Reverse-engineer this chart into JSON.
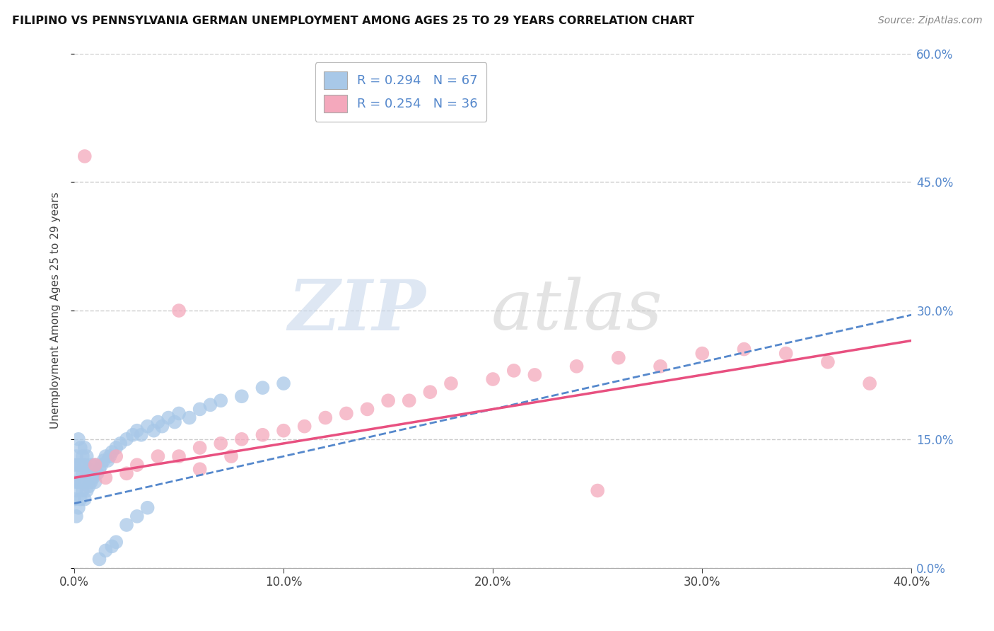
{
  "title": "FILIPINO VS PENNSYLVANIA GERMAN UNEMPLOYMENT AMONG AGES 25 TO 29 YEARS CORRELATION CHART",
  "source": "Source: ZipAtlas.com",
  "ylabel": "Unemployment Among Ages 25 to 29 years",
  "legend_entry1_r": "0.294",
  "legend_entry1_n": "67",
  "legend_entry2_r": "0.254",
  "legend_entry2_n": "36",
  "filipino_color": "#a8c8e8",
  "pa_german_color": "#f4a8bc",
  "filipino_line_color": "#5588cc",
  "pa_german_line_color": "#e85080",
  "watermark_zip": "ZIP",
  "watermark_atlas": "atlas",
  "r_filipino": 0.294,
  "n_filipino": 67,
  "r_pa_german": 0.254,
  "n_pa_german": 36,
  "xlim": [
    0.0,
    0.4
  ],
  "ylim": [
    0.0,
    0.6
  ],
  "yticks": [
    0.0,
    0.15,
    0.3,
    0.45,
    0.6
  ],
  "xticks": [
    0.0,
    0.1,
    0.2,
    0.3,
    0.4
  ],
  "grid_color": "#cccccc",
  "background_color": "#ffffff",
  "filipino_line_start_y": 0.075,
  "filipino_line_end_y": 0.295,
  "pa_german_line_start_y": 0.105,
  "pa_german_line_end_y": 0.265,
  "filipino_scatter_x": [
    0.0,
    0.0,
    0.0,
    0.001,
    0.001,
    0.001,
    0.001,
    0.002,
    0.002,
    0.002,
    0.002,
    0.003,
    0.003,
    0.003,
    0.003,
    0.004,
    0.004,
    0.004,
    0.005,
    0.005,
    0.005,
    0.005,
    0.006,
    0.006,
    0.006,
    0.007,
    0.007,
    0.008,
    0.008,
    0.009,
    0.01,
    0.01,
    0.011,
    0.012,
    0.013,
    0.014,
    0.015,
    0.016,
    0.017,
    0.018,
    0.02,
    0.022,
    0.025,
    0.028,
    0.03,
    0.032,
    0.035,
    0.038,
    0.04,
    0.042,
    0.045,
    0.048,
    0.05,
    0.055,
    0.06,
    0.065,
    0.07,
    0.08,
    0.09,
    0.1,
    0.012,
    0.015,
    0.018,
    0.02,
    0.025,
    0.03,
    0.035
  ],
  "filipino_scatter_y": [
    0.08,
    0.1,
    0.12,
    0.06,
    0.09,
    0.11,
    0.13,
    0.07,
    0.1,
    0.12,
    0.15,
    0.08,
    0.1,
    0.12,
    0.14,
    0.09,
    0.11,
    0.13,
    0.08,
    0.1,
    0.12,
    0.14,
    0.09,
    0.11,
    0.13,
    0.095,
    0.115,
    0.1,
    0.12,
    0.105,
    0.1,
    0.12,
    0.11,
    0.115,
    0.12,
    0.125,
    0.13,
    0.125,
    0.13,
    0.135,
    0.14,
    0.145,
    0.15,
    0.155,
    0.16,
    0.155,
    0.165,
    0.16,
    0.17,
    0.165,
    0.175,
    0.17,
    0.18,
    0.175,
    0.185,
    0.19,
    0.195,
    0.2,
    0.21,
    0.215,
    0.01,
    0.02,
    0.025,
    0.03,
    0.05,
    0.06,
    0.07
  ],
  "pa_german_scatter_x": [
    0.005,
    0.01,
    0.015,
    0.02,
    0.025,
    0.03,
    0.04,
    0.05,
    0.06,
    0.07,
    0.08,
    0.09,
    0.1,
    0.11,
    0.12,
    0.13,
    0.14,
    0.15,
    0.16,
    0.17,
    0.18,
    0.2,
    0.21,
    0.22,
    0.24,
    0.26,
    0.28,
    0.3,
    0.32,
    0.34,
    0.36,
    0.38,
    0.05,
    0.06,
    0.075,
    0.25
  ],
  "pa_german_scatter_y": [
    0.48,
    0.12,
    0.105,
    0.13,
    0.11,
    0.12,
    0.13,
    0.13,
    0.14,
    0.145,
    0.15,
    0.155,
    0.16,
    0.165,
    0.175,
    0.18,
    0.185,
    0.195,
    0.195,
    0.205,
    0.215,
    0.22,
    0.23,
    0.225,
    0.235,
    0.245,
    0.235,
    0.25,
    0.255,
    0.25,
    0.24,
    0.215,
    0.3,
    0.115,
    0.13,
    0.09
  ]
}
